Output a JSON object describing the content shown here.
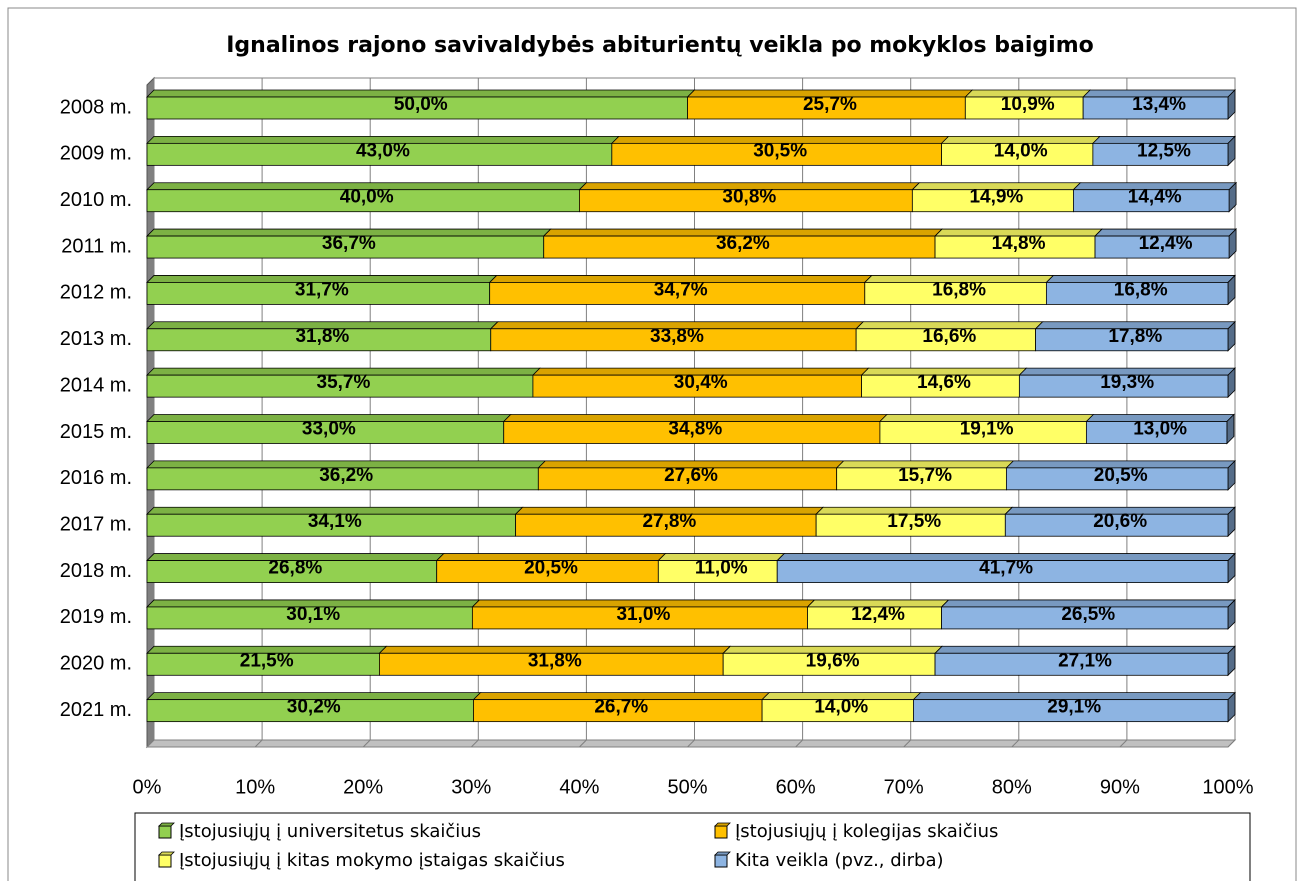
{
  "chart_data": {
    "type": "stacked_barh",
    "title": "Ignalinos rajono savivaldybės abiturientų veikla po mokyklos baigimo",
    "categories": [
      "2008 m.",
      "2009 m.",
      "2010 m.",
      "2011 m.",
      "2012 m.",
      "2013 m.",
      "2014 m.",
      "2015 m.",
      "2016 m.",
      "2017 m.",
      "2018 m.",
      "2019 m.",
      "2020 m.",
      "2021 m."
    ],
    "series": [
      {
        "name": "Įstojusiųjų į universitetus skaičius",
        "color": "#92d050",
        "values": [
          50.0,
          43.0,
          40.0,
          36.7,
          31.7,
          31.8,
          35.7,
          33.0,
          36.2,
          34.1,
          26.8,
          30.1,
          21.5,
          30.2
        ],
        "value_labels": [
          "50,0%",
          "43,0%",
          "40,0%",
          "36,7%",
          "31,7%",
          "31,8%",
          "35,7%",
          "33,0%",
          "36,2%",
          "34,1%",
          "26,8%",
          "30,1%",
          "21,5%",
          "30,2%"
        ]
      },
      {
        "name": "Įstojusiųjų į kolegijas skaičius",
        "color": "#ffc000",
        "values": [
          25.7,
          30.5,
          30.8,
          36.2,
          34.7,
          33.8,
          30.4,
          34.8,
          27.6,
          27.8,
          20.5,
          31.0,
          31.8,
          26.7
        ],
        "value_labels": [
          "25,7%",
          "30,5%",
          "30,8%",
          "36,2%",
          "34,7%",
          "33,8%",
          "30,4%",
          "34,8%",
          "27,6%",
          "27,8%",
          "20,5%",
          "31,0%",
          "31,8%",
          "26,7%"
        ]
      },
      {
        "name": "Įstojusiųjų į kitas mokymo įstaigas skaičius",
        "color": "#ffff66",
        "values": [
          10.9,
          14.0,
          14.9,
          14.8,
          16.8,
          16.6,
          14.6,
          19.1,
          15.7,
          17.5,
          11.0,
          12.4,
          19.6,
          14.0
        ],
        "value_labels": [
          "10,9%",
          "14,0%",
          "14,9%",
          "14,8%",
          "16,8%",
          "16,6%",
          "14,6%",
          "19,1%",
          "15,7%",
          "17,5%",
          "11,0%",
          "12,4%",
          "19,6%",
          "14,0%"
        ]
      },
      {
        "name": "Kita veikla  (pvz., dirba)",
        "color": "#8db4e2",
        "values": [
          13.4,
          12.5,
          14.4,
          12.4,
          16.8,
          17.8,
          19.3,
          13.0,
          20.5,
          20.6,
          41.7,
          26.5,
          27.1,
          29.1
        ],
        "value_labels": [
          "13,4%",
          "12,5%",
          "14,4%",
          "12,4%",
          "16,8%",
          "17,8%",
          "19,3%",
          "13,0%",
          "20,5%",
          "20,6%",
          "41,7%",
          "26,5%",
          "27,1%",
          "29,1%"
        ]
      }
    ],
    "xlim": [
      0,
      100
    ],
    "xticks": [
      {
        "value": 0,
        "label": "0%"
      },
      {
        "value": 10,
        "label": "10%"
      },
      {
        "value": 20,
        "label": "20%"
      },
      {
        "value": 30,
        "label": "30%"
      },
      {
        "value": 40,
        "label": "40%"
      },
      {
        "value": 50,
        "label": "50%"
      },
      {
        "value": 60,
        "label": "60%"
      },
      {
        "value": 70,
        "label": "70%"
      },
      {
        "value": 80,
        "label": "80%"
      },
      {
        "value": 90,
        "label": "90%"
      },
      {
        "value": 100,
        "label": "100%"
      }
    ],
    "grid": true
  }
}
